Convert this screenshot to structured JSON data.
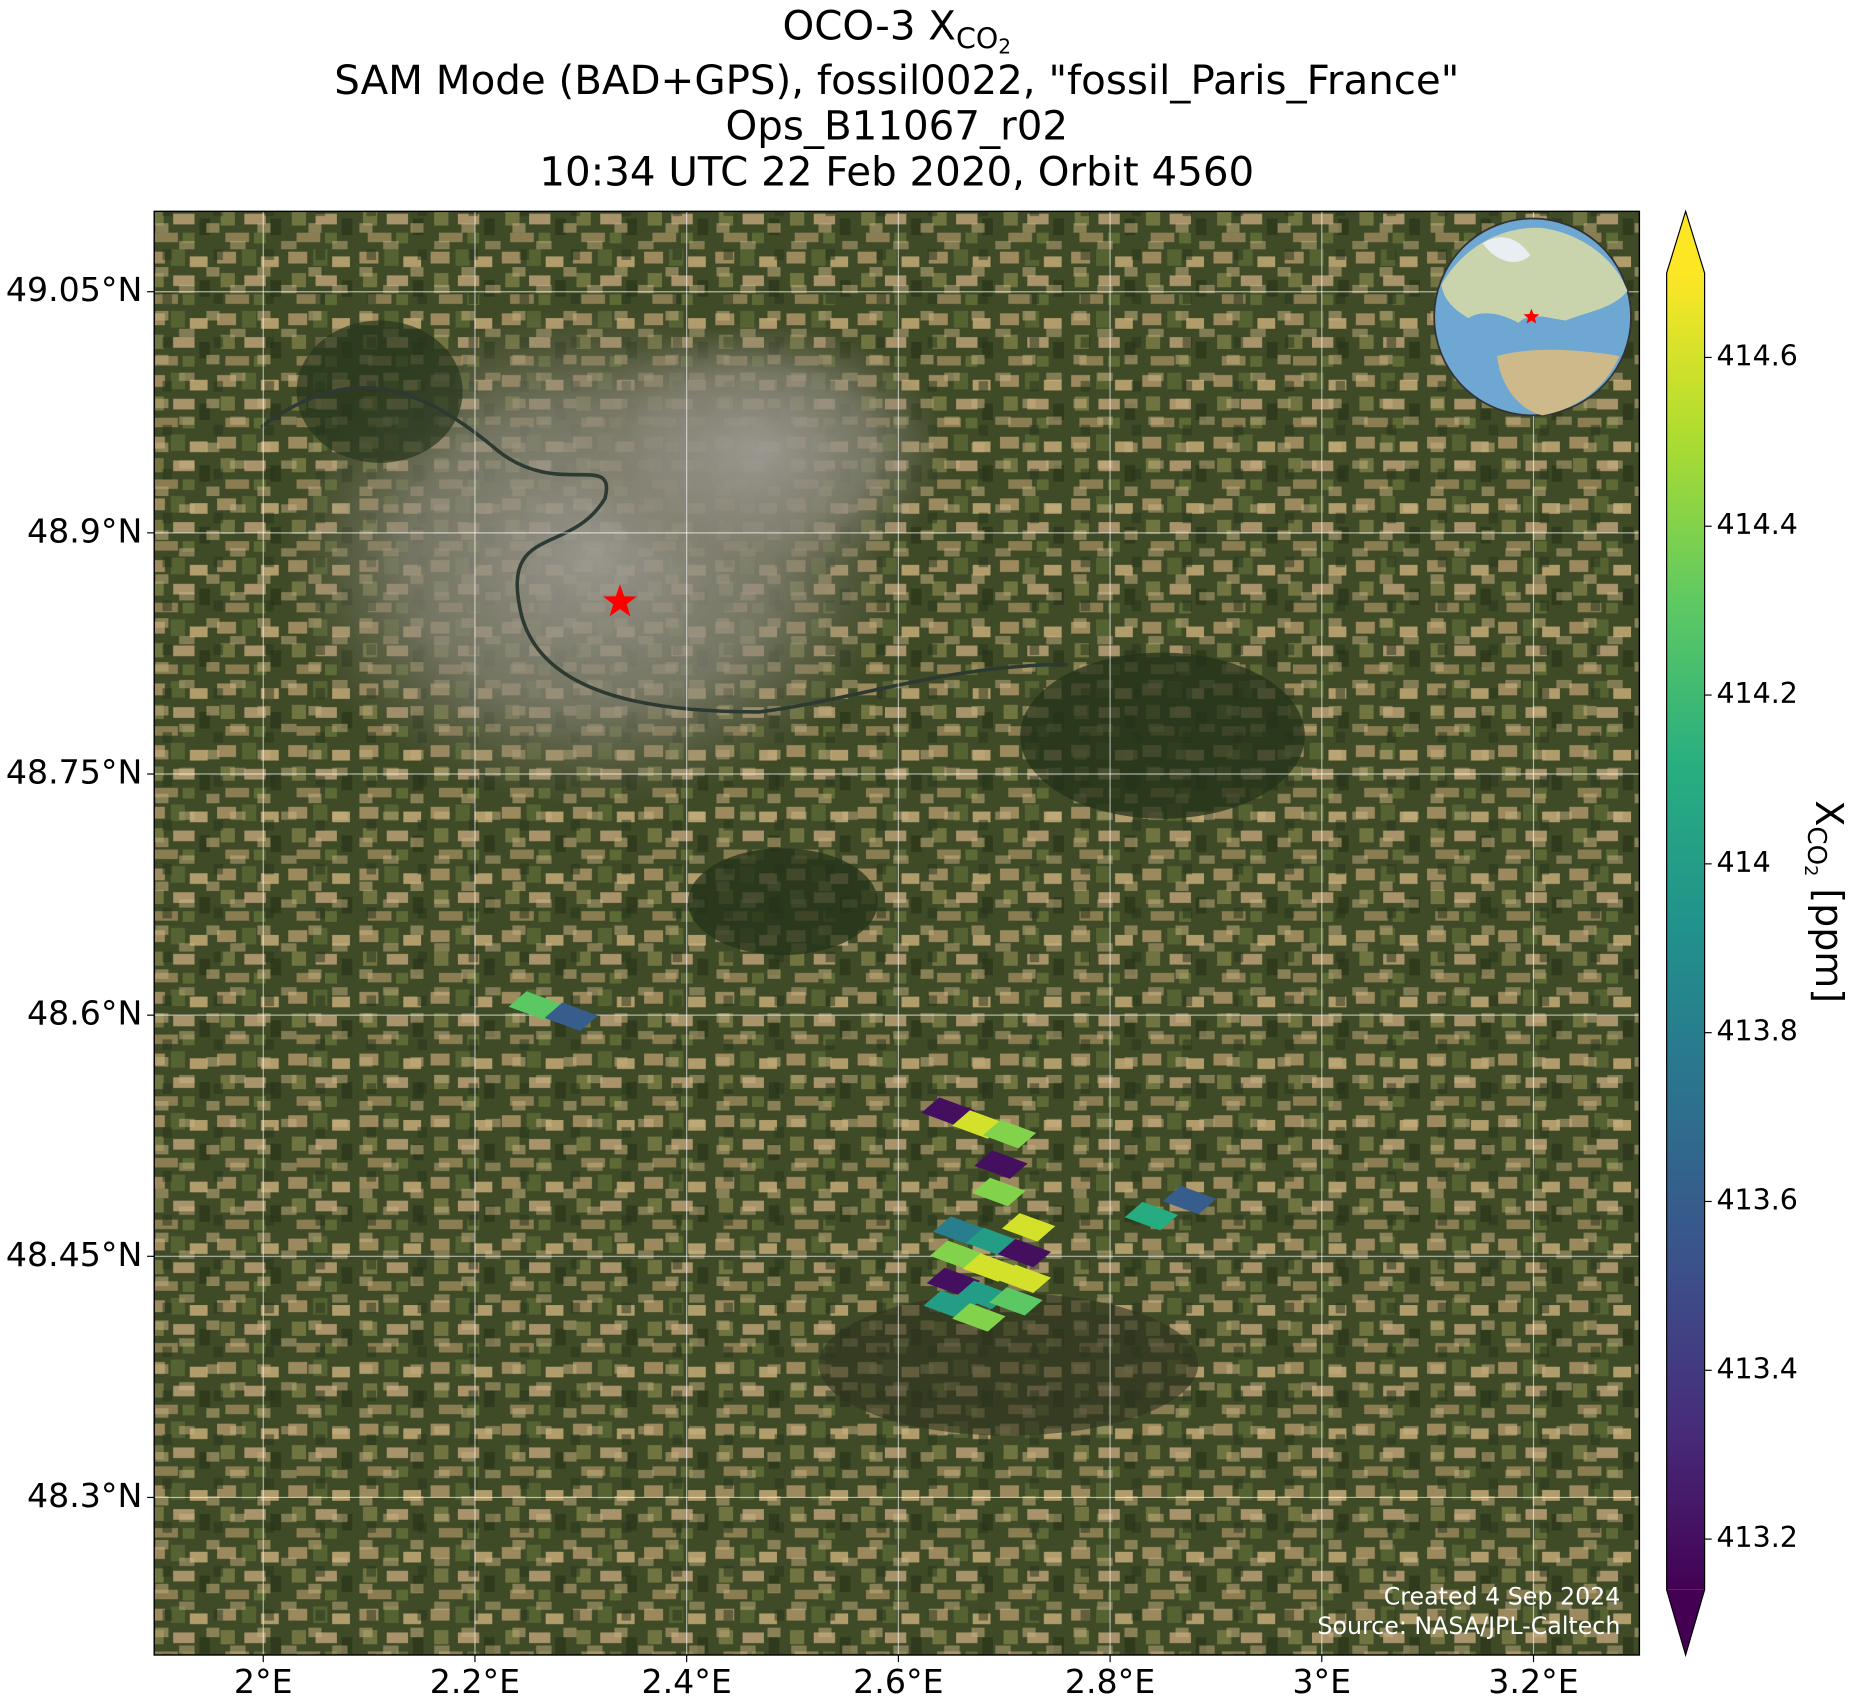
{
  "chart_data": {
    "type": "map",
    "title": {
      "prefix": "OCO-3 X",
      "sub": "CO",
      "subsub": "2",
      "lines": [
        "SAM Mode (BAD+GPS), fossil0022, \"fossil_Paris_France\"",
        "Ops_B11067_r02",
        "10:34 UTC 22 Feb 2020, Orbit 4560"
      ]
    },
    "xlim": [
      1.897,
      3.3
    ],
    "ylim": [
      48.202,
      49.1
    ],
    "xticks": [
      {
        "value": 2,
        "label": "2°E"
      },
      {
        "value": 2.2,
        "label": "2.2°E"
      },
      {
        "value": 2.4,
        "label": "2.4°E"
      },
      {
        "value": 2.6,
        "label": "2.6°E"
      },
      {
        "value": 2.8,
        "label": "2.8°E"
      },
      {
        "value": 3,
        "label": "3°E"
      },
      {
        "value": 3.2,
        "label": "3.2°E"
      }
    ],
    "yticks": [
      {
        "value": 48.3,
        "label": "48.3°N"
      },
      {
        "value": 48.45,
        "label": "48.45°N"
      },
      {
        "value": 48.6,
        "label": "48.6°N"
      },
      {
        "value": 48.75,
        "label": "48.75°N"
      },
      {
        "value": 48.9,
        "label": "48.9°N"
      },
      {
        "value": 49.05,
        "label": "49.05°N"
      }
    ],
    "grid": true,
    "colormap": "viridis",
    "clim": [
      413.14,
      414.7
    ],
    "colorbar_ticks": [
      413.2,
      413.4,
      413.6,
      413.8,
      414.0,
      414.2,
      414.4,
      414.6
    ],
    "colorbar_label": {
      "prefix": "X",
      "sub": "CO",
      "subsub": "2",
      "unit": "[ppm]"
    },
    "marker": {
      "lon": 2.337,
      "lat": 48.857,
      "color": "#ff0000"
    },
    "footprints": {
      "lon": [
        2.257,
        2.291,
        2.647,
        2.676,
        2.705,
        2.697,
        2.695,
        2.839,
        2.875,
        2.658,
        2.723,
        2.689,
        2.655,
        2.719,
        2.686,
        2.652,
        2.719,
        2.68,
        2.649,
        2.711,
        2.676
      ],
      "lat": [
        48.606,
        48.599,
        48.54,
        48.532,
        48.526,
        48.507,
        48.49,
        48.475,
        48.485,
        48.466,
        48.468,
        48.459,
        48.451,
        48.452,
        48.443,
        48.434,
        48.436,
        48.426,
        48.42,
        48.422,
        48.412
      ],
      "values": [
        414.3,
        413.6,
        413.2,
        414.6,
        414.4,
        413.2,
        414.4,
        414.1,
        413.6,
        413.8,
        414.6,
        414.0,
        414.4,
        413.2,
        414.6,
        413.2,
        414.6,
        414.0,
        414.0,
        414.3,
        414.4
      ]
    },
    "annotations": [
      "Created 4 Sep 2024",
      "Source: NASA/JPL-Caltech"
    ]
  }
}
